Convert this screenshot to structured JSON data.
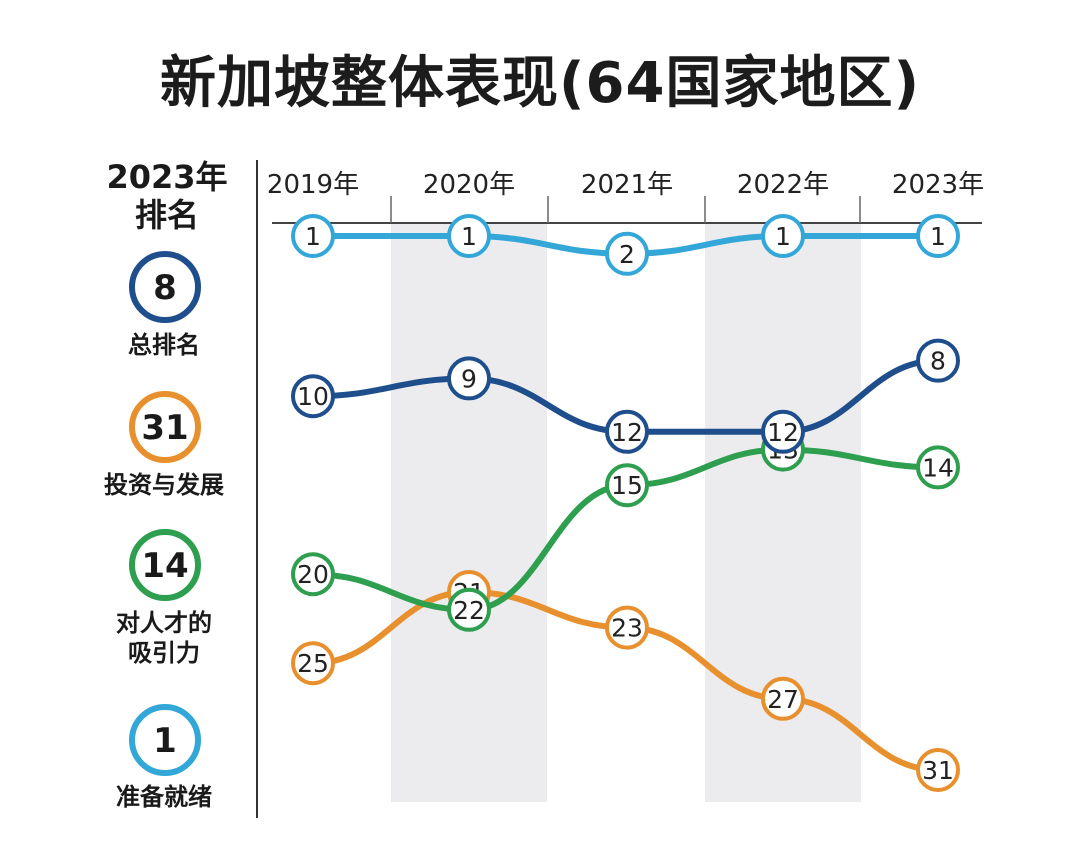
{
  "title": "新加坡整体表现(64国家地区)",
  "legend": {
    "heading_line1": "2023年",
    "heading_line2": "排名",
    "items": [
      {
        "rank": "8",
        "label_lines": [
          "总排名"
        ],
        "color": "#1f4e8c"
      },
      {
        "rank": "31",
        "label_lines": [
          "投资与发展"
        ],
        "color": "#e8902e"
      },
      {
        "rank": "14",
        "label_lines": [
          "对人才的",
          "吸引力"
        ],
        "color": "#2e9e4f"
      },
      {
        "rank": "1",
        "label_lines": [
          "准备就绪"
        ],
        "color": "#33a7d8"
      }
    ]
  },
  "chart_data": {
    "type": "line",
    "x": [
      "2019年",
      "2020年",
      "2021年",
      "2022年",
      "2023年"
    ],
    "y_inverted": true,
    "series": [
      {
        "name": "准备就绪",
        "color": "#33a7d8",
        "values": [
          1,
          1,
          2,
          1,
          1
        ]
      },
      {
        "name": "总排名",
        "color": "#1f4e8c",
        "values": [
          10,
          9,
          12,
          12,
          8
        ]
      },
      {
        "name": "对人才的吸引力",
        "color": "#2e9e4f",
        "values": [
          20,
          22,
          15,
          13,
          14
        ]
      },
      {
        "name": "投资与发展",
        "color": "#e8902e",
        "values": [
          25,
          21,
          23,
          27,
          31
        ]
      }
    ],
    "shaded_columns": [
      "2020年",
      "2022年"
    ],
    "grid": false
  }
}
